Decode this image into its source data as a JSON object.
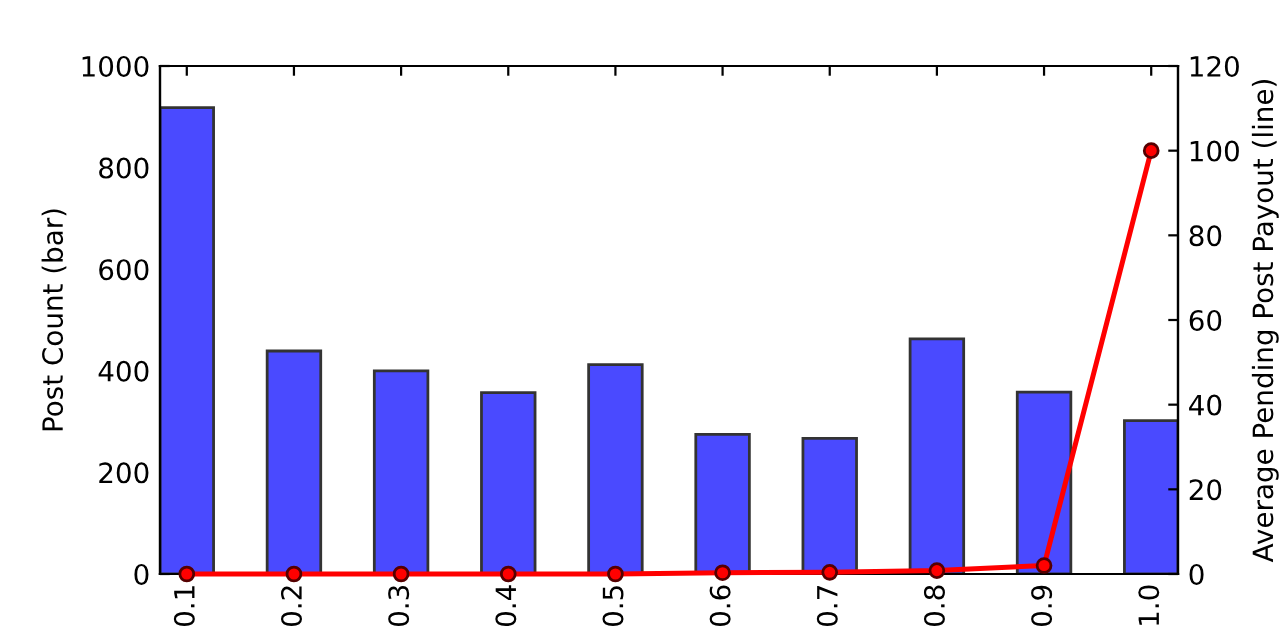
{
  "chart_data": {
    "type": "bar",
    "categories": [
      "0.1",
      "0.2",
      "0.3",
      "0.4",
      "0.5",
      "0.6",
      "0.7",
      "0.8",
      "0.9",
      "1.0"
    ],
    "ylabel": "Post Count (bar)",
    "y2label": "Average Pending Post Payout (line)",
    "ylim": [
      0,
      1000
    ],
    "yticks": [
      0,
      200,
      400,
      600,
      800,
      1000
    ],
    "y2lim": [
      0,
      120
    ],
    "y2ticks": [
      0,
      20,
      40,
      60,
      80,
      100,
      120
    ],
    "series": [
      {
        "color": "#4a4aff",
        "values": [
          918,
          439,
          400,
          357,
          412,
          275,
          267,
          463,
          358,
          302
        ]
      },
      {
        "type": "line",
        "axis": "y2",
        "color": "#ff0000",
        "marker": "circle",
        "values": [
          0,
          0,
          0,
          0,
          0,
          0.3,
          0.4,
          0.8,
          2,
          100
        ]
      }
    ],
    "grid": false
  }
}
